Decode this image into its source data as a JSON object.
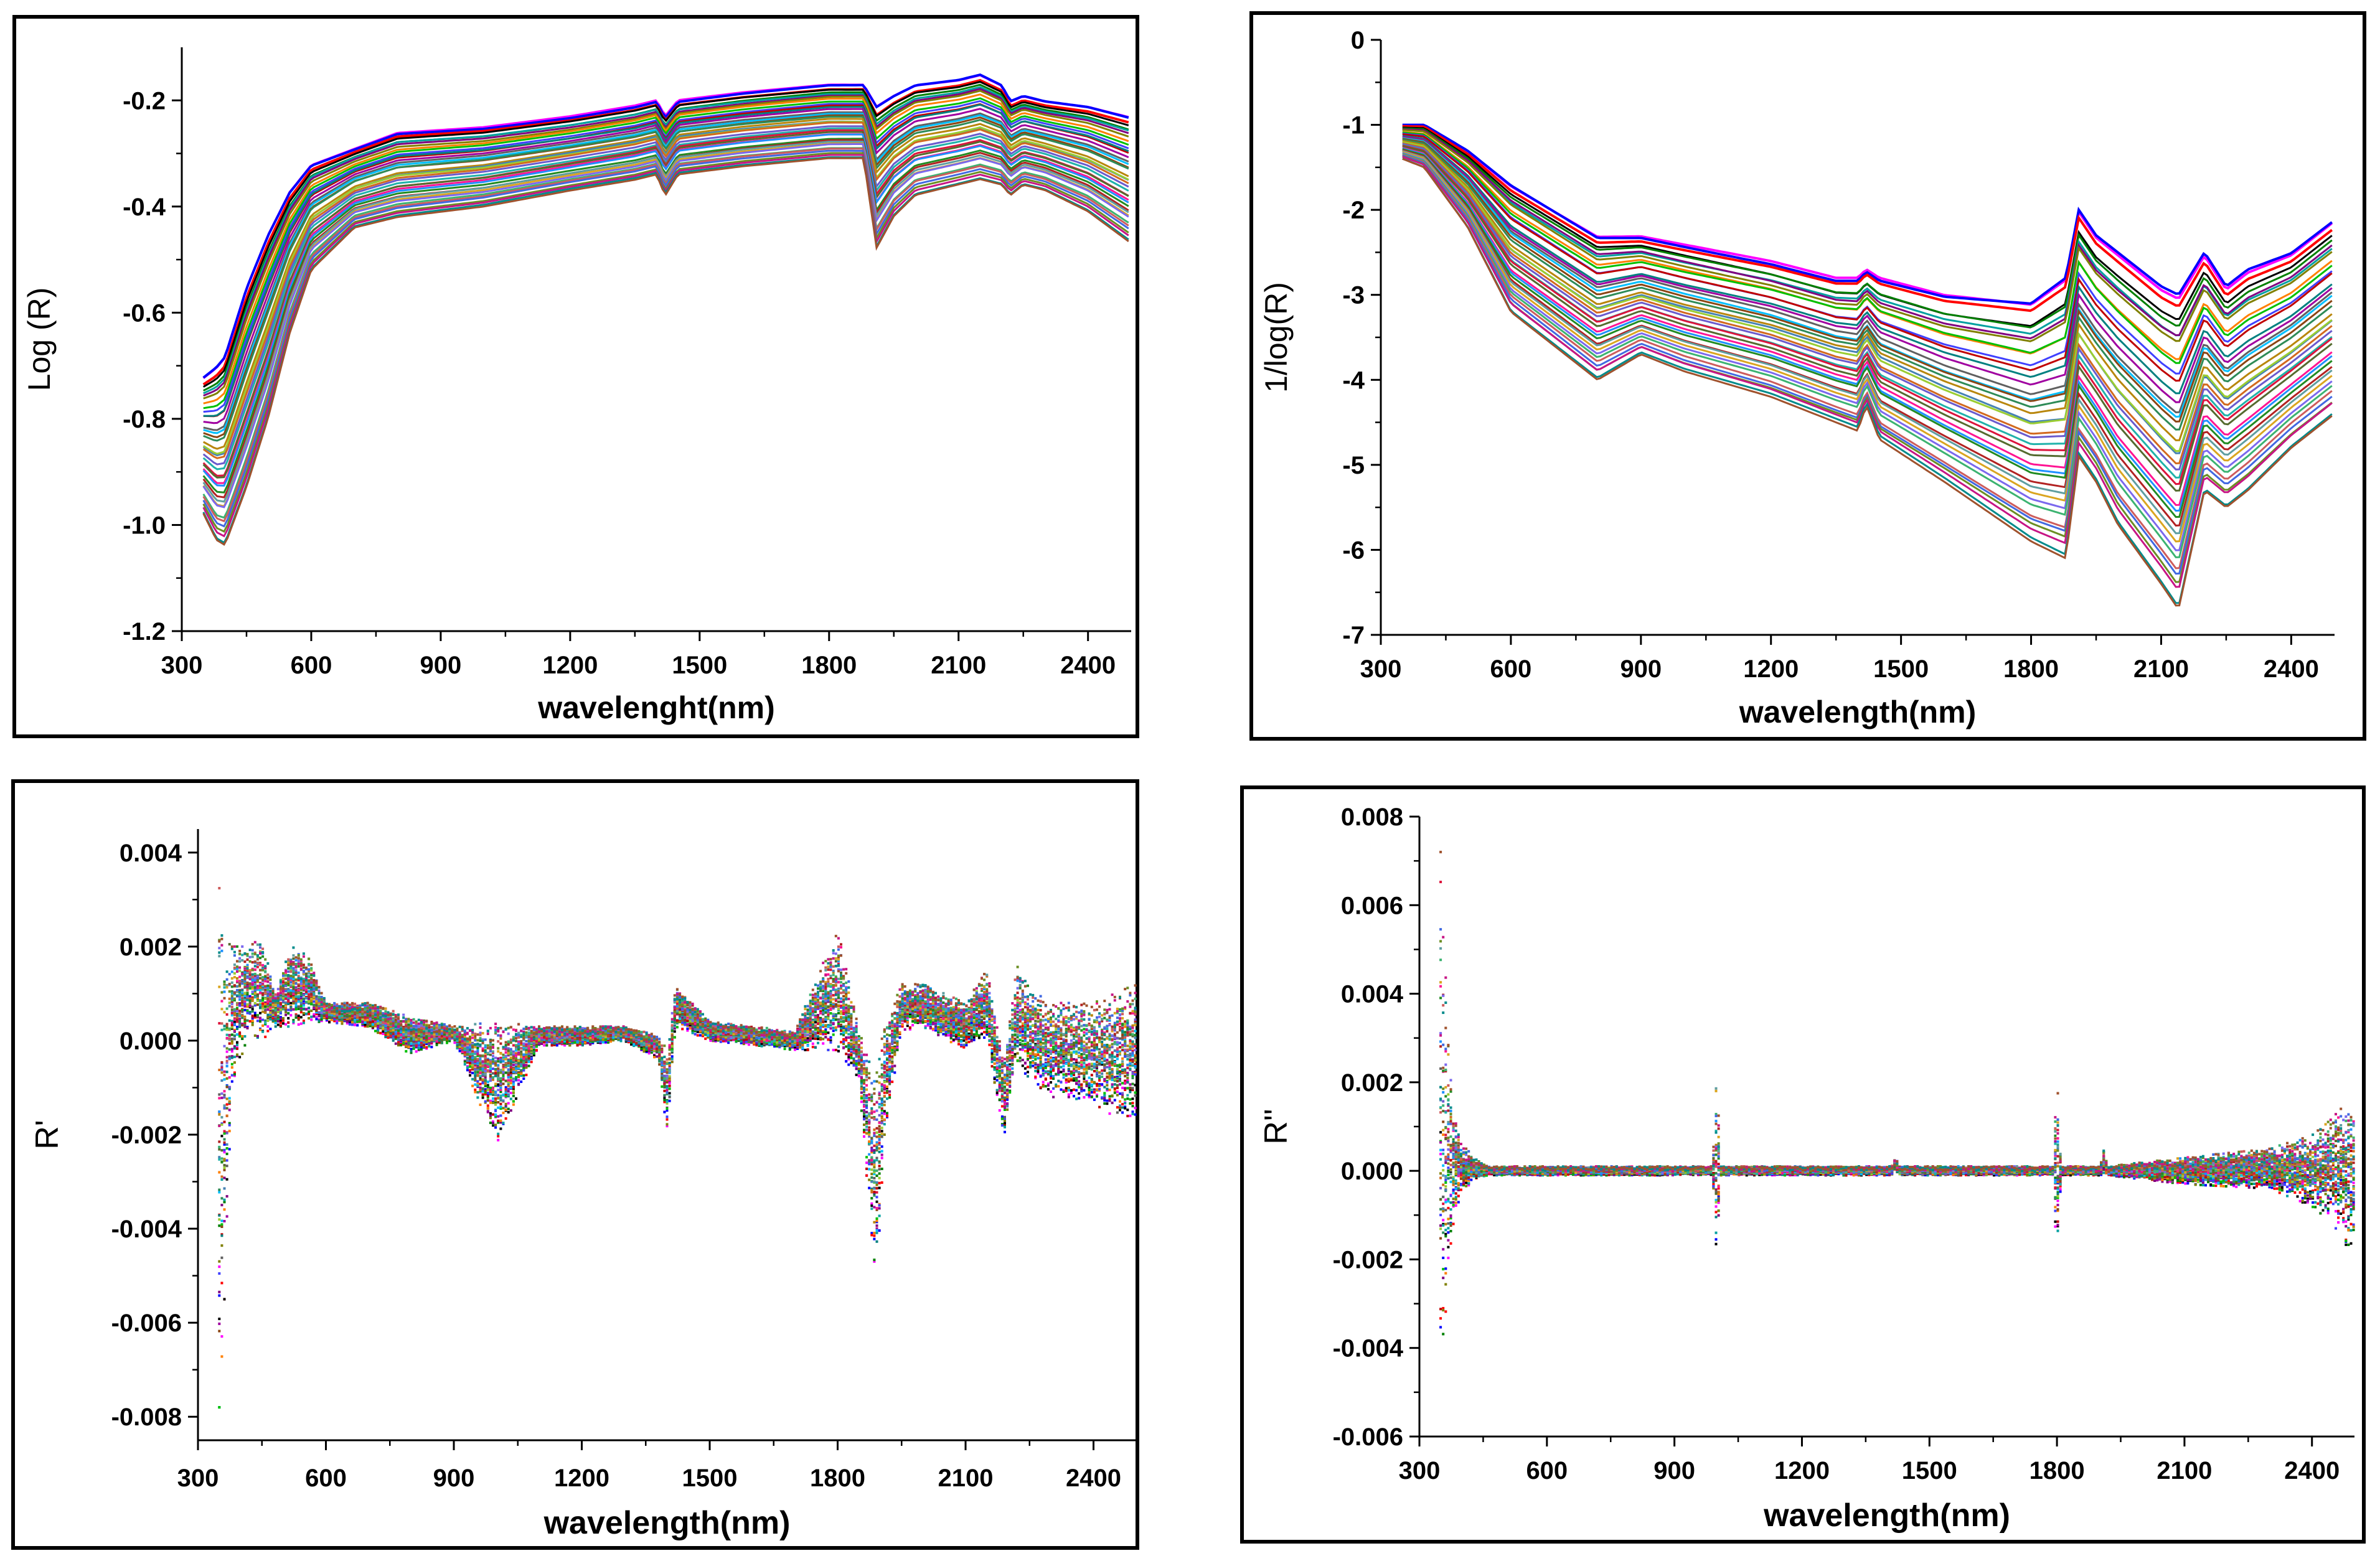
{
  "chart_data": [
    {
      "type": "line",
      "title": "",
      "xlabel": "wavelenght(nm)",
      "ylabel": "Log (R)",
      "xlim": [
        300,
        2500
      ],
      "ylim": [
        -1.2,
        -0.1
      ],
      "xticks": [
        "300",
        "600",
        "900",
        "1200",
        "1500",
        "1800",
        "2100",
        "2400"
      ],
      "yticks": [
        "-0.2",
        "-0.4",
        "-0.6",
        "-0.8",
        "-1.0",
        "-1.2"
      ],
      "grid": false,
      "legend": "none",
      "series_count": 40,
      "envelope": {
        "x": [
          350,
          380,
          400,
          450,
          500,
          550,
          600,
          700,
          800,
          900,
          1000,
          1200,
          1350,
          1400,
          1420,
          1450,
          1600,
          1800,
          1880,
          1910,
          1950,
          2000,
          2100,
          2150,
          2200,
          2220,
          2250,
          2300,
          2400,
          2500
        ],
        "upper": [
          -0.72,
          -0.7,
          -0.68,
          -0.55,
          -0.45,
          -0.37,
          -0.32,
          -0.29,
          -0.26,
          -0.255,
          -0.25,
          -0.23,
          -0.21,
          -0.2,
          -0.23,
          -0.2,
          -0.185,
          -0.17,
          -0.17,
          -0.21,
          -0.19,
          -0.17,
          -0.16,
          -0.15,
          -0.17,
          -0.2,
          -0.19,
          -0.2,
          -0.21,
          -0.23
        ],
        "lower": [
          -0.98,
          -1.03,
          -1.04,
          -0.93,
          -0.8,
          -0.64,
          -0.52,
          -0.44,
          -0.42,
          -0.41,
          -0.4,
          -0.37,
          -0.35,
          -0.34,
          -0.38,
          -0.34,
          -0.325,
          -0.31,
          -0.31,
          -0.48,
          -0.42,
          -0.38,
          -0.36,
          -0.35,
          -0.36,
          -0.38,
          -0.36,
          -0.37,
          -0.41,
          -0.47
        ]
      }
    },
    {
      "type": "line",
      "title": "",
      "xlabel": "wavelength(nm)",
      "ylabel": "1/log(R)",
      "xlim": [
        300,
        2500
      ],
      "ylim": [
        -7,
        0
      ],
      "xticks": [
        "300",
        "600",
        "900",
        "1200",
        "1500",
        "1800",
        "2100",
        "2400"
      ],
      "yticks": [
        "0",
        "-1",
        "-2",
        "-3",
        "-4",
        "-5",
        "-6",
        "-7"
      ],
      "grid": false,
      "legend": "none",
      "series_count": 40,
      "envelope": {
        "x": [
          350,
          400,
          500,
          600,
          700,
          800,
          900,
          1000,
          1200,
          1350,
          1400,
          1420,
          1450,
          1600,
          1800,
          1880,
          1910,
          1950,
          2000,
          2100,
          2140,
          2200,
          2250,
          2300,
          2400,
          2500
        ],
        "upper": [
          -1.0,
          -1.0,
          -1.3,
          -1.7,
          -2.0,
          -2.3,
          -2.3,
          -2.4,
          -2.6,
          -2.8,
          -2.8,
          -2.7,
          -2.8,
          -3.0,
          -3.1,
          -2.8,
          -2.0,
          -2.3,
          -2.5,
          -2.9,
          -3.0,
          -2.5,
          -2.9,
          -2.7,
          -2.5,
          -2.1
        ],
        "lower": [
          -1.4,
          -1.5,
          -2.2,
          -3.2,
          -3.6,
          -4.0,
          -3.7,
          -3.9,
          -4.2,
          -4.5,
          -4.6,
          -4.3,
          -4.7,
          -5.2,
          -5.9,
          -6.1,
          -4.9,
          -5.2,
          -5.7,
          -6.4,
          -6.7,
          -5.3,
          -5.5,
          -5.3,
          -4.8,
          -4.4
        ]
      }
    },
    {
      "type": "scatter",
      "title": "",
      "xlabel": "wavelength(nm)",
      "ylabel": "R'",
      "xlim": [
        300,
        2500
      ],
      "ylim": [
        -0.0085,
        0.0045
      ],
      "xticks": [
        "300",
        "600",
        "900",
        "1200",
        "1500",
        "1800",
        "2100",
        "2400"
      ],
      "yticks": [
        "0.004",
        "0.002",
        "0.000",
        "-0.002",
        "-0.004",
        "-0.006",
        "-0.008"
      ],
      "grid": false,
      "legend": "none",
      "series_count": 40,
      "envelope": {
        "x": [
          350,
          360,
          380,
          420,
          450,
          480,
          520,
          560,
          600,
          700,
          800,
          900,
          1000,
          1100,
          1200,
          1300,
          1380,
          1400,
          1420,
          1450,
          1500,
          1600,
          1700,
          1800,
          1850,
          1890,
          1910,
          1950,
          2000,
          2100,
          2150,
          2190,
          2220,
          2250,
          2300,
          2350,
          2400,
          2450,
          2500
        ],
        "upper": [
          0.0036,
          0.0026,
          0.002,
          0.002,
          0.0022,
          0.001,
          0.0021,
          0.0018,
          0.0008,
          0.0008,
          0.0005,
          0.0003,
          0.0004,
          0.0003,
          0.0003,
          0.0003,
          0.0001,
          -0.0002,
          0.0012,
          0.0009,
          0.0004,
          0.0003,
          0.0002,
          0.0024,
          0.0002,
          -0.0008,
          0.0004,
          0.0012,
          0.0012,
          0.0008,
          0.0015,
          -0.0004,
          0.0016,
          0.0011,
          0.0008,
          0.0008,
          0.0008,
          0.001,
          0.0012
        ],
        "lower": [
          -0.0078,
          -0.006,
          -0.001,
          0.0002,
          0.0,
          0.0003,
          0.0003,
          0.0004,
          0.0004,
          0.0003,
          -0.0003,
          0.0,
          -0.0022,
          -0.0001,
          -0.0001,
          0.0,
          -0.0004,
          -0.002,
          0.0003,
          0.0002,
          0.0,
          -0.0001,
          -0.0002,
          -0.0002,
          -0.0008,
          -0.0054,
          -0.002,
          0.0002,
          0.0003,
          -0.0002,
          0.0001,
          -0.0021,
          -0.0005,
          -0.0008,
          -0.0012,
          -0.0012,
          -0.0014,
          -0.0016,
          -0.0017
        ]
      }
    },
    {
      "type": "scatter",
      "title": "",
      "xlabel": "wavelength(nm)",
      "ylabel": "R''",
      "xlim": [
        300,
        2500
      ],
      "ylim": [
        -0.006,
        0.008
      ],
      "xticks": [
        "300",
        "600",
        "900",
        "1200",
        "1500",
        "1800",
        "2100",
        "2400"
      ],
      "yticks": [
        "0.008",
        "0.006",
        "0.004",
        "0.002",
        "0.000",
        "-0.002",
        "-0.004",
        "-0.006"
      ],
      "grid": false,
      "legend": "none",
      "series_count": 40,
      "envelope": {
        "x": [
          350,
          355,
          360,
          370,
          380,
          400,
          430,
          460,
          500,
          600,
          800,
          990,
          1000,
          1010,
          1200,
          1410,
          1420,
          1430,
          1600,
          1790,
          1800,
          1810,
          1900,
          1910,
          1920,
          2100,
          2300,
          2400,
          2450,
          2480,
          2500
        ],
        "upper": [
          0.0072,
          0.0059,
          0.005,
          0.003,
          0.0015,
          0.0006,
          0.0003,
          0.0001,
          0.0001,
          0.0001,
          0.0001,
          0.0001,
          0.0023,
          0.0001,
          0.0001,
          0.0001,
          0.0003,
          0.0001,
          0.0001,
          0.0001,
          0.0022,
          0.0001,
          0.0001,
          0.0005,
          0.0001,
          0.0003,
          0.0005,
          0.0008,
          0.0012,
          0.0016,
          0.0014
        ],
        "lower": [
          -0.0052,
          -0.0047,
          -0.004,
          -0.0025,
          -0.0012,
          -0.0005,
          -0.0002,
          -0.0001,
          -0.0001,
          -0.0001,
          -0.0001,
          -0.0001,
          -0.0023,
          -0.0001,
          -0.0001,
          -0.0001,
          0.0,
          -0.0001,
          -0.0001,
          -0.0001,
          -0.0022,
          -0.0001,
          -0.0001,
          -0.0001,
          -0.0001,
          -0.0003,
          -0.0004,
          -0.0008,
          -0.0012,
          -0.0017,
          -0.0016
        ]
      }
    }
  ],
  "palette": [
    "#ff00ff",
    "#0000ff",
    "#ff0000",
    "#000000",
    "#008000",
    "#00a0a0",
    "#800080",
    "#808000",
    "#ff8000",
    "#00c000",
    "#4040ff",
    "#c00000",
    "#008080",
    "#a000a0",
    "#606060",
    "#00bfff",
    "#8b4513",
    "#2e8b57",
    "#b8860b",
    "#4682b4",
    "#9acd32",
    "#d2691e",
    "#6a5acd",
    "#20b2aa",
    "#dc143c",
    "#556b2f",
    "#ff1493",
    "#1e90ff",
    "#228b22",
    "#b22222",
    "#5f9ea0",
    "#daa520",
    "#7b68ee",
    "#3cb371",
    "#cd5c5c",
    "#4169e1",
    "#6b8e23",
    "#c71585",
    "#008b8b",
    "#a0522d"
  ]
}
